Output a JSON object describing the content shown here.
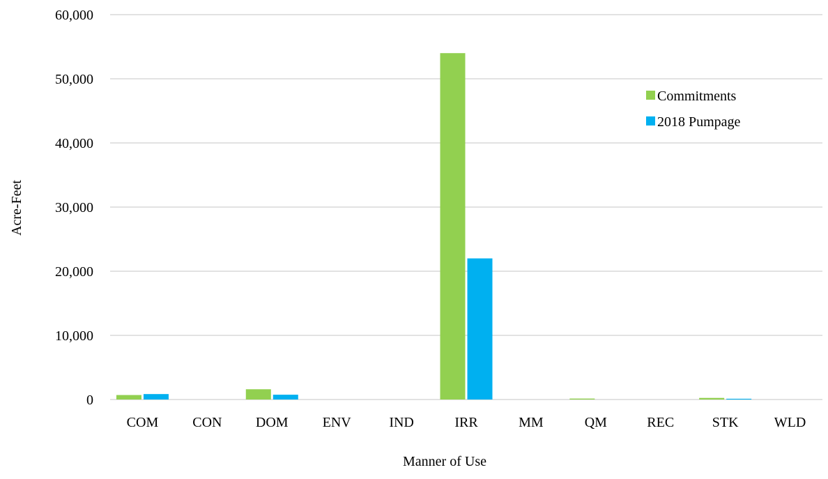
{
  "chart_data": {
    "type": "bar",
    "categories": [
      "COM",
      "CON",
      "DOM",
      "ENV",
      "IND",
      "IRR",
      "MM",
      "QM",
      "REC",
      "STK",
      "WLD"
    ],
    "series": [
      {
        "name": "Commitments",
        "color": "#92d050",
        "values": [
          700,
          0,
          1600,
          0,
          0,
          54000,
          0,
          150,
          0,
          250,
          0
        ]
      },
      {
        "name": "2018 Pumpage",
        "color": "#00b0f0",
        "values": [
          850,
          0,
          750,
          0,
          0,
          22000,
          0,
          0,
          0,
          120,
          0
        ]
      }
    ],
    "title": "",
    "xlabel": "Manner of Use",
    "ylabel": "Acre-Feet",
    "ylim": [
      0,
      60000
    ],
    "yticks": [
      0,
      10000,
      20000,
      30000,
      40000,
      50000,
      60000
    ],
    "ytick_labels": [
      "0",
      "10,000",
      "20,000",
      "30,000",
      "40,000",
      "50,000",
      "60,000"
    ],
    "grid": true,
    "gridline_color": "#d9d9d9",
    "legend_position": "top-right"
  }
}
